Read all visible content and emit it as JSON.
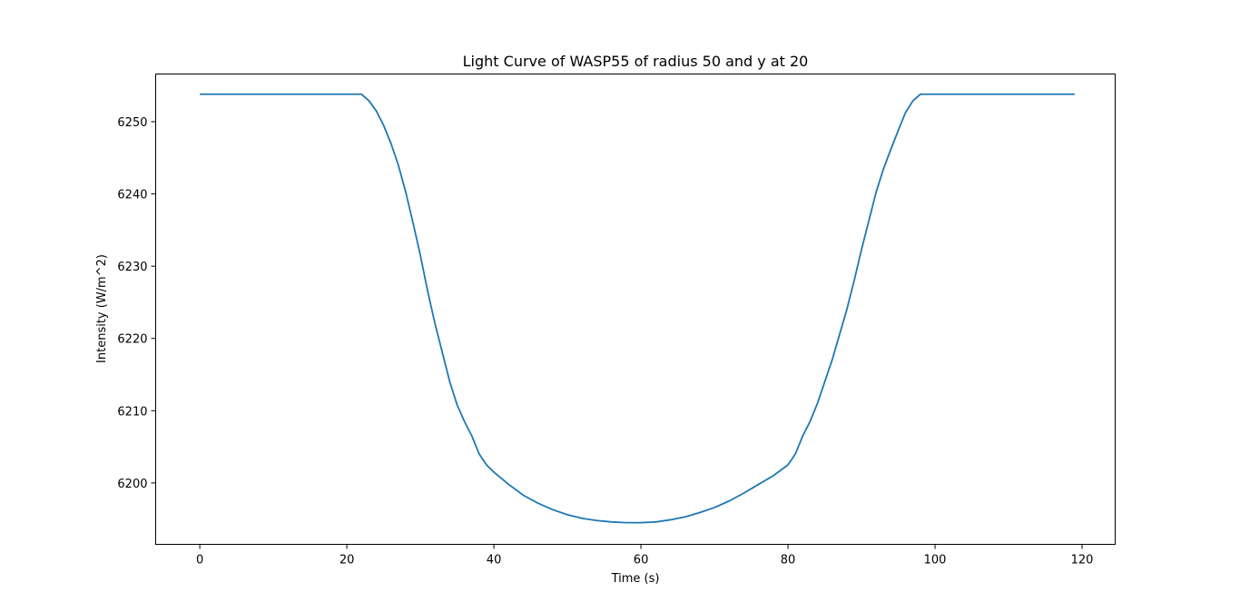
{
  "chart_data": {
    "type": "line",
    "title": "Light Curve of WASP55 of radius 50 and y at 20",
    "xlabel": "Time (s)",
    "ylabel": "Intensity (W/m^2)",
    "xlim": [
      -6,
      124.5
    ],
    "ylim": [
      6191.5,
      6256.6
    ],
    "xticks": [
      0,
      20,
      40,
      60,
      80,
      100,
      120
    ],
    "yticks": [
      6200,
      6210,
      6220,
      6230,
      6240,
      6250
    ],
    "grid": false,
    "series_color": "#1f77b4",
    "series": [
      {
        "x": [
          0,
          5,
          10,
          15,
          20,
          22,
          23,
          24,
          25,
          26,
          27,
          28,
          29,
          30,
          31,
          32,
          33,
          34,
          35,
          36,
          37,
          38,
          39,
          40,
          42,
          44,
          46,
          48,
          50,
          52,
          54,
          56,
          58,
          60,
          62,
          64,
          66,
          68,
          70,
          72,
          74,
          76,
          78,
          80,
          81,
          82,
          83,
          84,
          85,
          86,
          87,
          88,
          89,
          90,
          91,
          92,
          93,
          94,
          95,
          96,
          97,
          98,
          100,
          105,
          110,
          115,
          119
        ],
        "values": [
          6253.8,
          6253.8,
          6253.8,
          6253.8,
          6253.8,
          6253.8,
          6252.9,
          6251.5,
          6249.5,
          6247.0,
          6244.0,
          6240.3,
          6236.0,
          6231.5,
          6226.5,
          6222.0,
          6218.0,
          6214.0,
          6210.8,
          6208.5,
          6206.5,
          6204.0,
          6202.5,
          6201.5,
          6199.8,
          6198.3,
          6197.2,
          6196.3,
          6195.6,
          6195.1,
          6194.8,
          6194.6,
          6194.5,
          6194.5,
          6194.6,
          6194.9,
          6195.3,
          6195.9,
          6196.6,
          6197.5,
          6198.6,
          6199.8,
          6201.0,
          6202.5,
          6204.0,
          6206.5,
          6208.5,
          6211.0,
          6214.0,
          6217.0,
          6220.5,
          6224.0,
          6228.0,
          6232.3,
          6236.3,
          6240.3,
          6243.5,
          6246.2,
          6248.8,
          6251.3,
          6252.9,
          6253.8,
          6253.8,
          6253.8,
          6253.8,
          6253.8,
          6253.8
        ]
      }
    ]
  }
}
